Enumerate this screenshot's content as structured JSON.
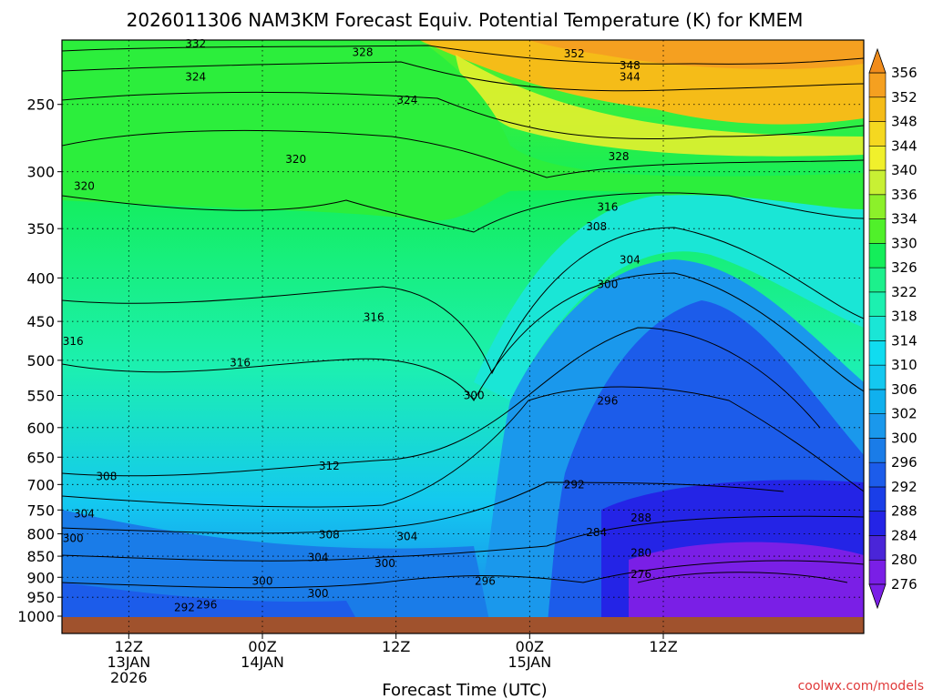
{
  "chart_data": {
    "type": "heatmap",
    "title": "2026011306 NAM3KM Forecast Equiv. Potential Temperature (K) for KMEM",
    "xlabel": "Forecast Time (UTC)",
    "ylabel": "",
    "y_scale": "log-pressure",
    "ylim": [
      1000,
      210
    ],
    "yticks": [
      250,
      300,
      350,
      400,
      450,
      500,
      550,
      600,
      650,
      700,
      750,
      800,
      850,
      900,
      950,
      1000
    ],
    "x_range": [
      "2026-01-13 06Z",
      "2026-01-16 06Z"
    ],
    "xticks": [
      {
        "time": "2026-01-13 12Z",
        "lines": [
          "12Z",
          "13JAN",
          "2026"
        ]
      },
      {
        "time": "2026-01-14 00Z",
        "lines": [
          "00Z",
          "14JAN"
        ]
      },
      {
        "time": "2026-01-14 12Z",
        "lines": [
          "12Z"
        ]
      },
      {
        "time": "2026-01-15 00Z",
        "lines": [
          "00Z",
          "15JAN"
        ]
      },
      {
        "time": "2026-01-15 12Z",
        "lines": [
          "12Z"
        ]
      }
    ],
    "colorbar": {
      "levels": [
        276,
        280,
        284,
        288,
        292,
        296,
        300,
        302,
        306,
        310,
        314,
        318,
        322,
        326,
        330,
        334,
        336,
        340,
        344,
        348,
        352,
        356
      ],
      "colors": [
        "#7a1fe6",
        "#4a25d8",
        "#2424e6",
        "#1a3ee8",
        "#1c5cea",
        "#1a7ce8",
        "#1a98ec",
        "#10b0ee",
        "#14c8f0",
        "#10dcf0",
        "#1ae6d6",
        "#1cf0b0",
        "#1cf08c",
        "#14ee5a",
        "#50f02a",
        "#8cf02a",
        "#c8f034",
        "#f0f02c",
        "#f5d820",
        "#f5bc18",
        "#f5a020",
        "#f08c1c"
      ]
    },
    "contour_labels": [
      {
        "value": "332",
        "time": "2026-01-13 18Z",
        "p": 212
      },
      {
        "value": "328",
        "time": "2026-01-14 09Z",
        "p": 217
      },
      {
        "value": "324",
        "time": "2026-01-13 18Z",
        "p": 232
      },
      {
        "value": "324",
        "time": "2026-01-14 13Z",
        "p": 247
      },
      {
        "value": "352",
        "time": "2026-01-15 04Z",
        "p": 218
      },
      {
        "value": "348",
        "time": "2026-01-15 09Z",
        "p": 225
      },
      {
        "value": "344",
        "time": "2026-01-15 09Z",
        "p": 232
      },
      {
        "value": "328",
        "time": "2026-01-15 08Z",
        "p": 288
      },
      {
        "value": "320",
        "time": "2026-01-14 03Z",
        "p": 290
      },
      {
        "value": "320",
        "time": "2026-01-13 08Z",
        "p": 312
      },
      {
        "value": "316",
        "time": "2026-01-15 07Z",
        "p": 330
      },
      {
        "value": "308",
        "time": "2026-01-15 06Z",
        "p": 348
      },
      {
        "value": "304",
        "time": "2026-01-15 09Z",
        "p": 381
      },
      {
        "value": "300",
        "time": "2026-01-15 07Z",
        "p": 407
      },
      {
        "value": "316",
        "time": "2026-01-14 10Z",
        "p": 445
      },
      {
        "value": "316",
        "time": "2026-01-13 07Z",
        "p": 475
      },
      {
        "value": "316",
        "time": "2026-01-13 22Z",
        "p": 503
      },
      {
        "value": "300",
        "time": "2026-01-14 19Z",
        "p": 550
      },
      {
        "value": "296",
        "time": "2026-01-15 07Z",
        "p": 558
      },
      {
        "value": "312",
        "time": "2026-01-14 06Z",
        "p": 666
      },
      {
        "value": "308",
        "time": "2026-01-13 10Z",
        "p": 685
      },
      {
        "value": "292",
        "time": "2026-01-15 04Z",
        "p": 700
      },
      {
        "value": "304",
        "time": "2026-01-13 08Z",
        "p": 758
      },
      {
        "value": "288",
        "time": "2026-01-15 10Z",
        "p": 766
      },
      {
        "value": "308",
        "time": "2026-01-14 06Z",
        "p": 802
      },
      {
        "value": "284",
        "time": "2026-01-15 06Z",
        "p": 797
      },
      {
        "value": "304",
        "time": "2026-01-14 13Z",
        "p": 806
      },
      {
        "value": "300",
        "time": "2026-01-13 07Z",
        "p": 810
      },
      {
        "value": "280",
        "time": "2026-01-15 10Z",
        "p": 843
      },
      {
        "value": "304",
        "time": "2026-01-14 05Z",
        "p": 853
      },
      {
        "value": "300",
        "time": "2026-01-14 11Z",
        "p": 867
      },
      {
        "value": "276",
        "time": "2026-01-15 10Z",
        "p": 893
      },
      {
        "value": "300",
        "time": "2026-01-14 00Z",
        "p": 909
      },
      {
        "value": "296",
        "time": "2026-01-14 20Z",
        "p": 909
      },
      {
        "value": "300",
        "time": "2026-01-14 05Z",
        "p": 940
      },
      {
        "value": "292",
        "time": "2026-01-13 17Z",
        "p": 977
      },
      {
        "value": "296",
        "time": "2026-01-13 19Z",
        "p": 970
      }
    ]
  },
  "credit": "coolwx.com/models"
}
